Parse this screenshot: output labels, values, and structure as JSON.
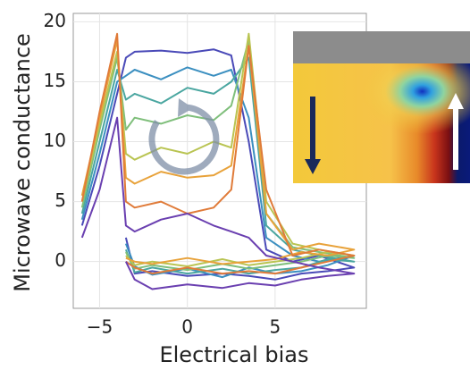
{
  "chart_data": {
    "type": "line",
    "x_label": "Electrical bias",
    "y_label": "Microwave conductance",
    "x": [
      -6,
      -5,
      -4,
      -3.5,
      -3,
      -1.5,
      0,
      1.5,
      2.5,
      3.5,
      4.5,
      6,
      7.5,
      9.5,
      8,
      6.5,
      5,
      3.5,
      2,
      0,
      -2,
      -3,
      -3.5
    ],
    "xlim": [
      -6.5,
      10.2
    ],
    "ylim": [
      -3.9,
      20.7
    ],
    "xticks": [
      {
        "value": -5,
        "label": "−5"
      },
      0,
      5
    ],
    "yticks": [
      0,
      5,
      10,
      15,
      20
    ],
    "grid": true,
    "series": [
      {
        "color": "#4a4ab8",
        "values": [
          3,
          8,
          14,
          17,
          17.5,
          17.6,
          17.4,
          17.7,
          17.2,
          10,
          1,
          0,
          0.5,
          -0.5,
          -0.8,
          -1,
          -1.5,
          -1.2,
          -1,
          -1.2,
          -0.8,
          -1,
          2
        ]
      },
      {
        "color": "#3b8fc0",
        "values": [
          3.5,
          9,
          15,
          15.5,
          16,
          15.2,
          16.2,
          15.5,
          16,
          12,
          2,
          0.5,
          0,
          0.5,
          -0.3,
          -0.8,
          -1,
          -0.5,
          -1.3,
          -0.6,
          -1.1,
          -0.4,
          1.5
        ]
      },
      {
        "color": "#4aa6a0",
        "values": [
          4,
          10,
          16,
          13.5,
          14,
          13.2,
          14.5,
          14,
          15,
          17,
          3,
          1,
          0.5,
          0,
          0.2,
          -0.5,
          -0.7,
          -1,
          -0.6,
          -1,
          -0.5,
          -0.9,
          1
        ]
      },
      {
        "color": "#7fbf7b",
        "values": [
          4.5,
          11,
          17,
          11,
          12,
          11.5,
          12.2,
          11.8,
          13,
          18.5,
          4,
          1.2,
          0.8,
          0.3,
          0.5,
          0,
          -0.3,
          -0.6,
          -0.2,
          -0.7,
          -0.3,
          -0.6,
          0.8
        ]
      },
      {
        "color": "#b9c452",
        "values": [
          5,
          11.5,
          17.5,
          9,
          8.5,
          9.5,
          9,
          10,
          9.5,
          19,
          5,
          1.5,
          1,
          0.5,
          0.8,
          0.3,
          0,
          -0.3,
          0.2,
          -0.4,
          0,
          -0.3,
          0.5
        ]
      },
      {
        "color": "#e8a23a",
        "values": [
          5.5,
          12,
          18.5,
          7,
          6.5,
          7.5,
          7,
          7.2,
          8,
          18,
          4,
          1,
          1.5,
          1,
          0.5,
          0.8,
          0.2,
          0,
          -0.2,
          0.3,
          -0.2,
          0,
          0.3
        ]
      },
      {
        "color": "#e07b39",
        "values": [
          5,
          12.5,
          19,
          5,
          4.5,
          5,
          4,
          4.5,
          6,
          18,
          6,
          0.5,
          1,
          0.5,
          0,
          -0.5,
          -1,
          -0.8,
          -1,
          -0.5,
          -1,
          -0.5,
          0
        ]
      },
      {
        "color": "#6a3fb0",
        "values": [
          2,
          6,
          12,
          3,
          2.5,
          3.5,
          4,
          3,
          2.5,
          2,
          0.5,
          0,
          -0.5,
          -1,
          -1.2,
          -1.5,
          -2,
          -1.8,
          -2.2,
          -1.9,
          -2.3,
          -1.5,
          0
        ]
      }
    ]
  }
}
